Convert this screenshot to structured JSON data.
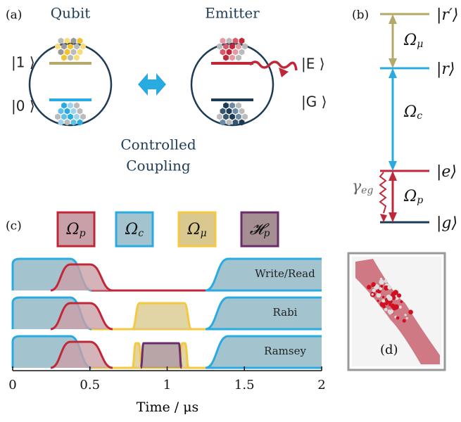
{
  "panel_a": {
    "label": "(a)",
    "qubit_title": "Qubit",
    "emitter_title": "Emitter",
    "qubit_states": [
      "|1 ⟩",
      "|0 ⟩"
    ],
    "emitter_states": [
      "|E ⟩",
      "|G ⟩"
    ],
    "coupling": [
      "Controlled",
      "Coupling"
    ]
  },
  "panel_b": {
    "label": "(b)",
    "levels": [
      "|r′⟩",
      "|r⟩",
      "|e⟩",
      "|g⟩"
    ],
    "transitions": [
      {
        "base": "Ω",
        "sub": "μ"
      },
      {
        "base": "Ω",
        "sub": "c"
      },
      {
        "base": "Ω",
        "sub": "p"
      }
    ],
    "decay": {
      "base": "γ",
      "sub": "eg"
    }
  },
  "panel_c": {
    "label": "(c)",
    "legend": [
      {
        "base": "Ω",
        "sub": "p"
      },
      {
        "base": "Ω",
        "sub": "c"
      },
      {
        "base": "Ω",
        "sub": "μ"
      },
      {
        "base": "𝓗",
        "sub": "p"
      }
    ],
    "rows": [
      "Write/Read",
      "Rabi",
      "Ramsey"
    ],
    "xlabel": "Time / μs",
    "xlim": [
      0,
      2
    ],
    "xticks": [
      0,
      0.5,
      1,
      1.5,
      2
    ]
  },
  "panel_d": {
    "label": "(d)"
  }
}
